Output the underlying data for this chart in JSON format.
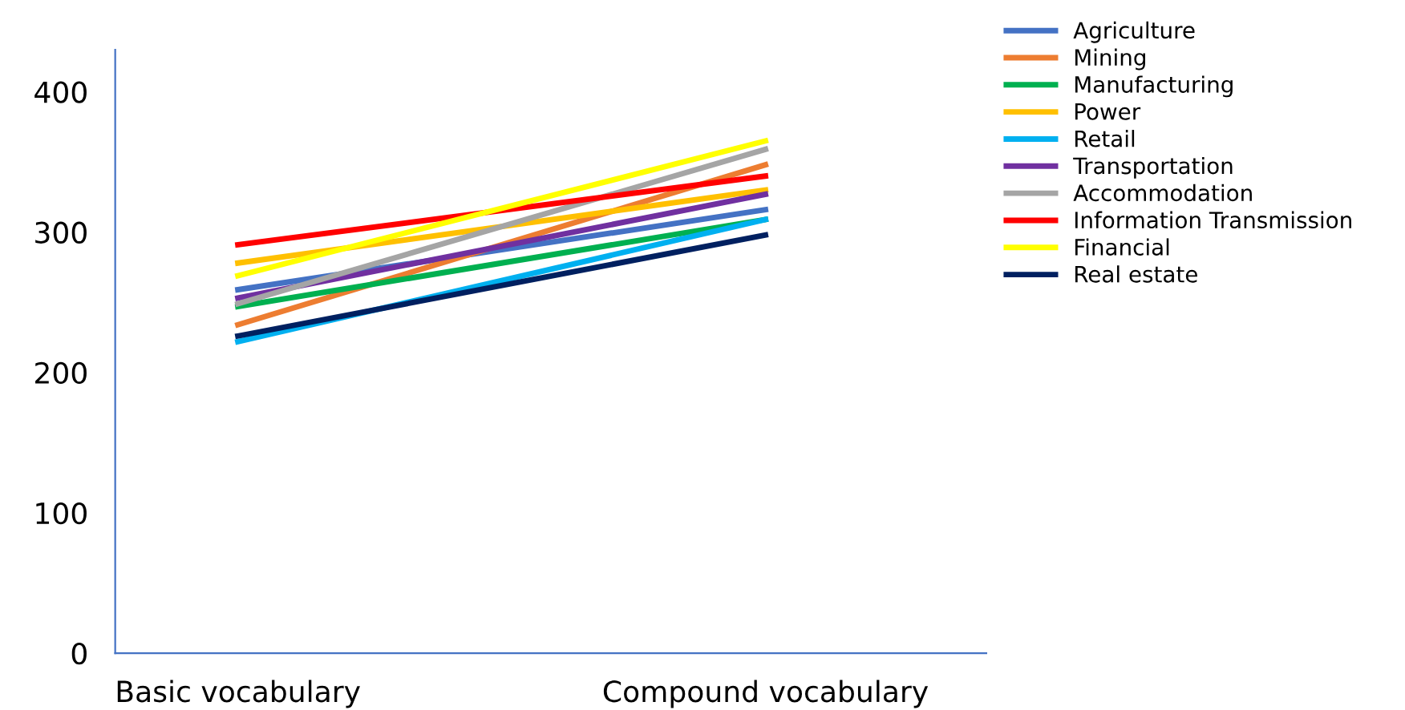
{
  "chart_data": {
    "type": "line",
    "categories": [
      "Basic vocabulary",
      "Compound vocabulary"
    ],
    "ylim": [
      0,
      430
    ],
    "yticks": [
      0,
      100,
      200,
      300,
      400
    ],
    "grid": false,
    "legend": "right",
    "marker": "none",
    "line_style": "solid",
    "series": [
      {
        "name": "Agriculture",
        "color": "#4472c4",
        "values": [
          259,
          316
        ]
      },
      {
        "name": "Mining",
        "color": "#ed7d31",
        "values": [
          234,
          348
        ]
      },
      {
        "name": "Manufacturing",
        "color": "#00b050",
        "values": [
          247,
          309
        ]
      },
      {
        "name": "Power",
        "color": "#ffc000",
        "values": [
          278,
          330
        ]
      },
      {
        "name": "Retail",
        "color": "#00b0f0",
        "values": [
          222,
          309
        ]
      },
      {
        "name": "Transportation",
        "color": "#7030a0",
        "values": [
          253,
          327
        ]
      },
      {
        "name": "Accommodation",
        "color": "#a5a5a5",
        "values": [
          249,
          359
        ]
      },
      {
        "name": "Information Transmission",
        "color": "#ff0000",
        "values": [
          291,
          340
        ]
      },
      {
        "name": "Financial",
        "color": "#ffff00",
        "values": [
          269,
          365
        ]
      },
      {
        "name": "Real estate",
        "color": "#002060",
        "values": [
          226,
          298
        ]
      }
    ]
  }
}
